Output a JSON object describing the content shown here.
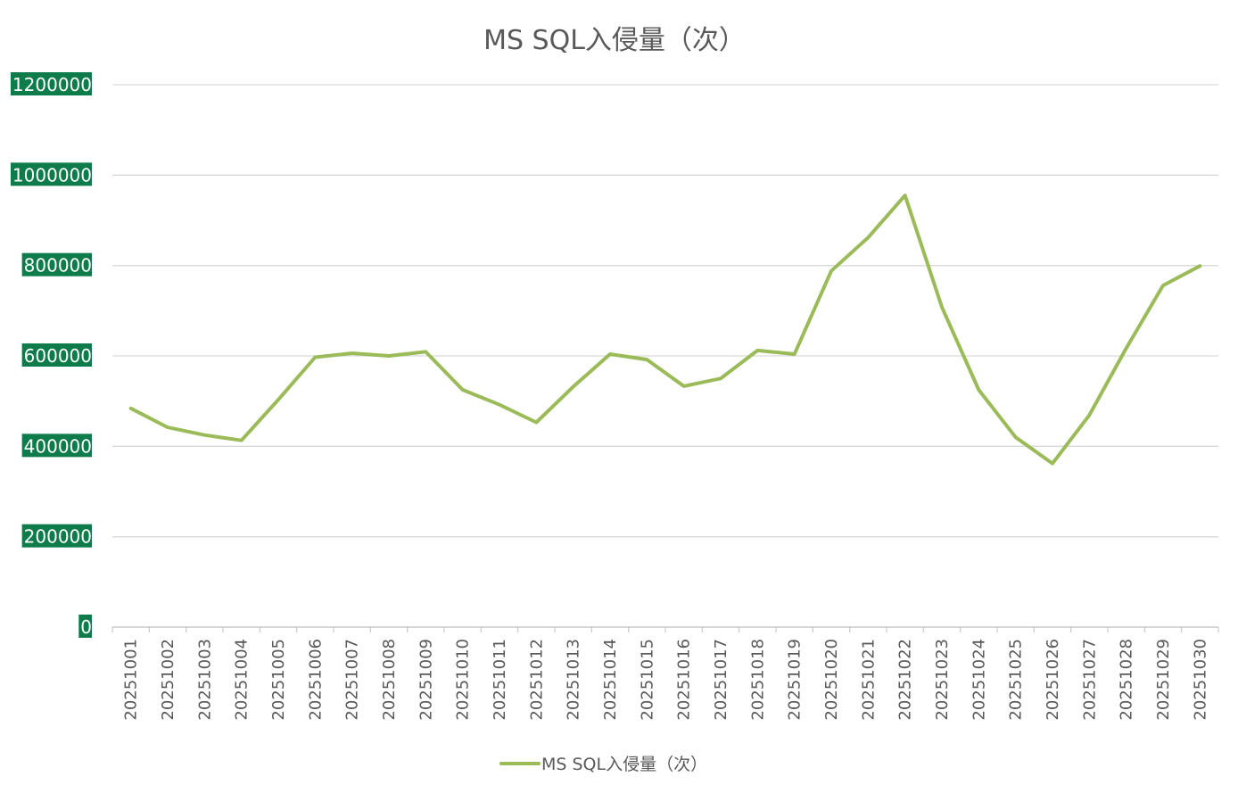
{
  "chart_data": {
    "type": "line",
    "title": "MS SQL入侵量（次）",
    "xlabel": "",
    "ylabel": "",
    "ylim": [
      0,
      1200000
    ],
    "yticks": [
      "0",
      "200000",
      "400000",
      "600000",
      "800000",
      "1000000",
      "1200000"
    ],
    "grid": true,
    "legend_position": "bottom",
    "categories": [
      "20251001",
      "20251002",
      "20251003",
      "20251004",
      "20251005",
      "20251006",
      "20251007",
      "20251008",
      "20251009",
      "20251010",
      "20251011",
      "20251012",
      "20251013",
      "20251014",
      "20251015",
      "20251016",
      "20251017",
      "20251018",
      "20251019",
      "20251020",
      "20251021",
      "20251022",
      "20251023",
      "20251024",
      "20251025",
      "20251026",
      "20251027",
      "20251028",
      "20251029",
      "20251030"
    ],
    "series": [
      {
        "name": "MS SQL入侵量（次）",
        "color": "#9bbb59",
        "values": [
          484000,
          442000,
          425000,
          413000,
          503000,
          597000,
          606000,
          600000,
          609000,
          525000,
          492000,
          453000,
          532000,
          604000,
          592000,
          533000,
          550000,
          612000,
          604000,
          788000,
          862000,
          955000,
          708000,
          525000,
          420000,
          362000,
          469000,
          617000,
          756000,
          799000
        ]
      }
    ],
    "colors": {
      "axis_label_bg": "#0e7c4a",
      "grid": "#d9d9d9",
      "text": "#595959"
    }
  }
}
